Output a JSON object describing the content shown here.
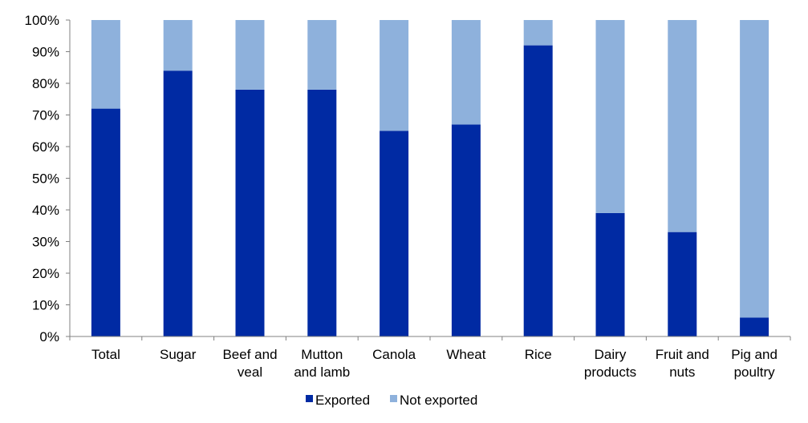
{
  "chart_data": {
    "type": "bar",
    "stacked": true,
    "categories": [
      [
        "Total"
      ],
      [
        "Sugar"
      ],
      [
        "Beef and",
        "veal"
      ],
      [
        "Mutton",
        "and lamb"
      ],
      [
        "Canola"
      ],
      [
        "Wheat"
      ],
      [
        "Rice"
      ],
      [
        "Dairy",
        "products"
      ],
      [
        "Fruit and",
        "nuts"
      ],
      [
        "Pig and",
        "poultry"
      ]
    ],
    "series": [
      {
        "name": "Exported",
        "color": "#002aa3",
        "values": [
          72,
          84,
          78,
          78,
          65,
          67,
          92,
          39,
          33,
          6
        ]
      },
      {
        "name": "Not exported",
        "color": "#8eb1dc",
        "values": [
          28,
          16,
          22,
          22,
          35,
          33,
          8,
          61,
          67,
          94
        ]
      }
    ],
    "yticks": [
      "0%",
      "10%",
      "20%",
      "30%",
      "40%",
      "50%",
      "60%",
      "70%",
      "80%",
      "90%",
      "100%"
    ],
    "ylim": [
      0,
      100
    ],
    "grid": false,
    "legend_position": "bottom"
  }
}
